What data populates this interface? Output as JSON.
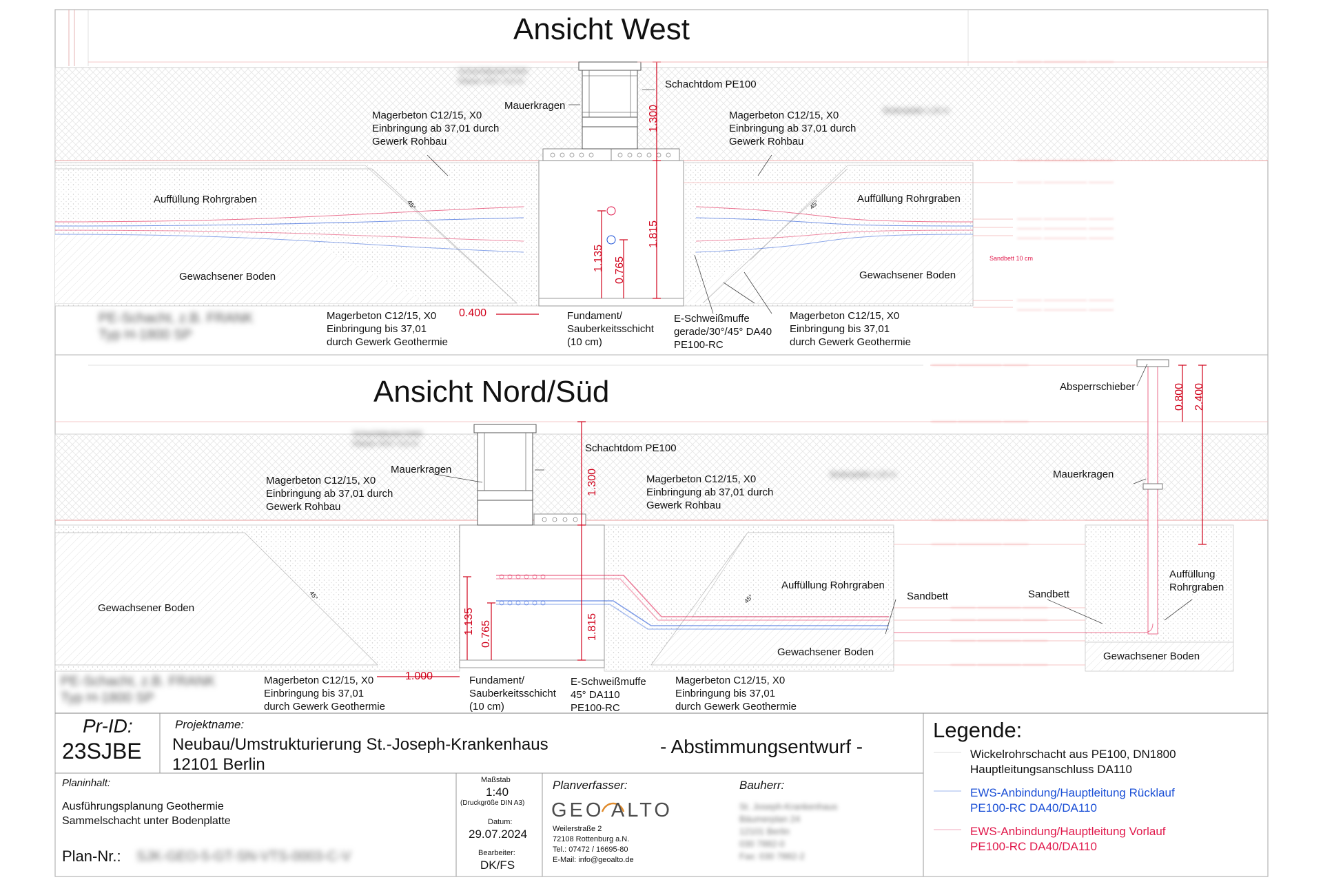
{
  "views": {
    "west": {
      "title": "Ansicht West",
      "labels": {
        "schachtdom": "Schachtdom PE100",
        "mauerkragen": "Mauerkragen",
        "magerbeton_rohbau_left": "Magerbeton C12/15, X0\nEinbringung ab 37,01 durch\nGewerk Rohbau",
        "magerbeton_rohbau_right": "Magerbeton C12/15, X0\nEinbringung ab 37,01 durch\nGewerk Rohbau",
        "auffuellung_left": "Auffüllung Rohrgraben",
        "auffuellung_right": "Auffüllung Rohrgraben",
        "boden_left": "Gewachsener Boden",
        "boden_right": "Gewachsener Boden",
        "magerbeton_geo_left": "Magerbeton C12/15, X0\nEinbringung bis 37,01\ndurch Gewerk Geothermie",
        "magerbeton_geo_right": "Magerbeton C12/15, X0\nEinbringung bis 37,01\ndurch Gewerk Geothermie",
        "fundament": "Fundament/\nSauberkeitsschicht\n(10 cm)",
        "muffe": "E-Schweißmuffe\ngerade/30°/45° DA40\nPE100-RC",
        "sandbett_small": "Sandbett 10 cm",
        "angle_left": "45°",
        "angle_right": "45°",
        "blurred_type": "PE-Schacht, z.B. FRANK\nTyp H-1800 SP",
        "blurred_top": "Schachtdeckel D400\nKlasse XXX / 0,0 m",
        "blurred_bodenplatte": "Bodenplatte 1,20 m"
      },
      "dims": {
        "d1300": "1.300",
        "d1815": "1.815",
        "d1135": "1.135",
        "d0765": "0.765",
        "d0400": "0.400"
      }
    },
    "nordsued": {
      "title": "Ansicht Nord/Süd",
      "labels": {
        "schachtdom": "Schachtdom PE100",
        "mauerkragen": "Mauerkragen",
        "mauerkragen_right": "Mauerkragen",
        "absperrschieber": "Absperrschieber",
        "magerbeton_rohbau_left": "Magerbeton C12/15, X0\nEinbringung ab 37,01 durch\nGewerk Rohbau",
        "magerbeton_rohbau_right": "Magerbeton C12/15, X0\nEinbringung ab 37,01 durch\nGewerk Rohbau",
        "boden_left": "Gewachsener Boden",
        "boden_mid": "Gewachsener Boden",
        "boden_right": "Gewachsener Boden",
        "auffuellung_mid": "Auffüllung Rohrgraben",
        "auffuellung_right": "Auffüllung\nRohrgraben",
        "sandbett_mid": "Sandbett",
        "sandbett_right": "Sandbett",
        "magerbeton_geo_left": "Magerbeton C12/15, X0\nEinbringung bis 37,01\ndurch Gewerk Geothermie",
        "magerbeton_geo_right": "Magerbeton C12/15, X0\nEinbringung bis 37,01\ndurch Gewerk Geothermie",
        "fundament": "Fundament/\nSauberkeitsschicht\n(10 cm)",
        "muffe": "E-Schweißmuffe\n45° DA110\nPE100-RC",
        "angle_left": "45°",
        "angle_right": "45°",
        "blurred_type": "PE-Schacht, z.B. FRANK\nTyp H-1800 SP",
        "blurred_top": "Schachtdeckel D400\nKlasse XXX / 0,0 m",
        "blurred_bodenplatte": "Bodenplatte 1,20 m"
      },
      "dims": {
        "d1300": "1.300",
        "d1815": "1.815",
        "d1135": "1.135",
        "d0765": "0.765",
        "d1000": "1.000",
        "d0800": "0.800",
        "d2400": "2.400"
      }
    }
  },
  "title_block": {
    "pr_id_label": "Pr-ID:",
    "pr_id": "23SJBE",
    "projektname_label": "Projektname:",
    "projektname": "Neubau/Umstrukturierung St.-Joseph-Krankenhaus\n12101 Berlin",
    "status": "- Abstimmungsentwurf -",
    "planinhalt_label": "Planinhalt:",
    "planinhalt": "Ausführungsplanung Geothermie\nSammelschacht unter Bodenplatte",
    "plan_nr_label": "Plan-Nr.:",
    "plan_nr": "SJK-GEO-5-GT-SN-VTS-0003-C-V",
    "massstab_label": "Maßstab",
    "massstab": "1:40",
    "druckgroesse": "(Druckgröße DIN A3)",
    "datum_label": "Datum:",
    "datum": "29.07.2024",
    "bearbeiter_label": "Bearbeiter:",
    "bearbeiter": "DK/FS",
    "planverfasser_label": "Planverfasser:",
    "logo_text": "GEO ALTO",
    "address": "Weilerstraße 2\n72108 Rottenburg a.N.\nTel.: 07472 / 16695-80\nE-Mail: info@geoalto.de",
    "bauherr_label": "Bauherr:",
    "bauherr": "St. Joseph-Krankenhaus\nBäumerplan 24\n12101 Berlin\n030 7882-0\nFax: 030 7882-2"
  },
  "legend": {
    "title": "Legende:",
    "items": [
      {
        "text": "Wickelrohrschacht aus PE100, DN1800\nHauptleitungsanschluss DA110",
        "color": "#111111"
      },
      {
        "text": "EWS-Anbindung/Hauptleitung Rücklauf\nPE100-RC DA40/DA110",
        "color": "#1a4fd6"
      },
      {
        "text": "EWS-Anbindung/Hauptleitung Vorlauf\nPE100-RC DA40/DA110",
        "color": "#e0174a"
      }
    ]
  },
  "colors": {
    "dim": "#d0021b",
    "ruecklauf": "#1a4fd6",
    "vorlauf": "#e0174a",
    "hatch": "#bdbdbd",
    "line": "#9a9a9a"
  }
}
